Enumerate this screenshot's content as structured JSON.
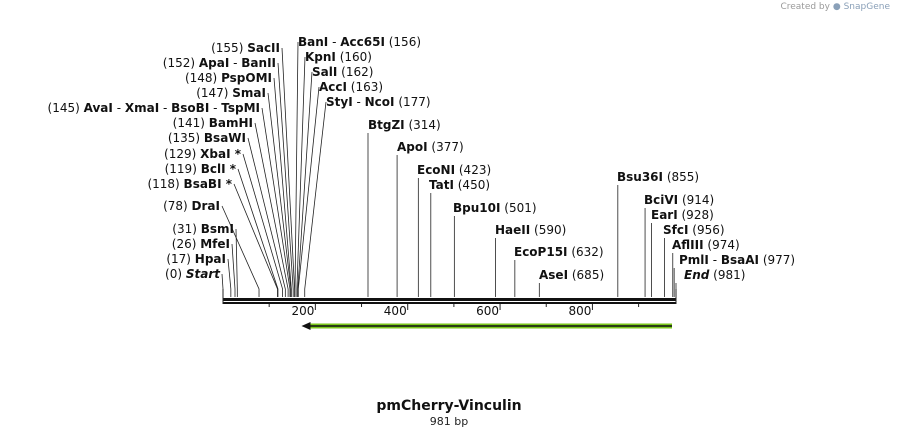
{
  "credit": {
    "prefix": "Created by",
    "brand": "SnapGene"
  },
  "plasmid": {
    "name": "pmCherry-Vinculin",
    "length_label": "981 bp",
    "length": 981
  },
  "axis": {
    "ticks": [
      {
        "value": 200,
        "label": "200"
      },
      {
        "value": 400,
        "label": "400"
      },
      {
        "value": 600,
        "label": "600"
      },
      {
        "value": 800,
        "label": "800"
      }
    ]
  },
  "feature": {
    "name": "orf-arrow",
    "start": 170,
    "end": 981,
    "direction": "reverse",
    "color": "#79c61a"
  },
  "labels_left": [
    {
      "pos": 155,
      "text": "(155)",
      "names": [
        "SacII"
      ]
    },
    {
      "pos": 152,
      "text": "(152)",
      "names": [
        "ApaI",
        "BanII"
      ]
    },
    {
      "pos": 148,
      "text": "(148)",
      "names": [
        "PspOMI"
      ]
    },
    {
      "pos": 147,
      "text": "(147)",
      "names": [
        "SmaI"
      ]
    },
    {
      "pos": 145,
      "text": "(145)",
      "names": [
        "AvaI",
        "XmaI",
        "BsoBI",
        "TspMI"
      ]
    },
    {
      "pos": 141,
      "text": "(141)",
      "names": [
        "BamHI"
      ]
    },
    {
      "pos": 135,
      "text": "(135)",
      "names": [
        "BsaWI"
      ]
    },
    {
      "pos": 129,
      "text": "(129)",
      "names": [
        "XbaI *"
      ]
    },
    {
      "pos": 119,
      "text": "(119)",
      "names": [
        "BclI *"
      ]
    },
    {
      "pos": 118,
      "text": "(118)",
      "names": [
        "BsaBI *"
      ]
    },
    {
      "pos": 78,
      "text": "(78)",
      "names": [
        "DraI"
      ]
    },
    {
      "pos": 31,
      "text": "(31)",
      "names": [
        "BsmI"
      ]
    },
    {
      "pos": 26,
      "text": "(26)",
      "names": [
        "MfeI"
      ]
    },
    {
      "pos": 17,
      "text": "(17)",
      "names": [
        "HpaI"
      ]
    },
    {
      "pos": 0,
      "text": "(0)",
      "names": [
        "Start"
      ],
      "italic": true
    }
  ],
  "labels_right": [
    {
      "pos": 156,
      "text": "(156)",
      "names": [
        "BanI",
        "Acc65I"
      ]
    },
    {
      "pos": 160,
      "text": "(160)",
      "names": [
        "KpnI"
      ]
    },
    {
      "pos": 162,
      "text": "(162)",
      "names": [
        "SalI"
      ]
    },
    {
      "pos": 163,
      "text": "(163)",
      "names": [
        "AccI"
      ]
    },
    {
      "pos": 177,
      "text": "(177)",
      "names": [
        "StyI",
        "NcoI"
      ]
    },
    {
      "pos": 314,
      "text": "(314)",
      "names": [
        "BtgZI"
      ]
    },
    {
      "pos": 377,
      "text": "(377)",
      "names": [
        "ApoI"
      ]
    },
    {
      "pos": 423,
      "text": "(423)",
      "names": [
        "EcoNI"
      ]
    },
    {
      "pos": 450,
      "text": "(450)",
      "names": [
        "TatI"
      ]
    },
    {
      "pos": 501,
      "text": "(501)",
      "names": [
        "Bpu10I"
      ]
    },
    {
      "pos": 590,
      "text": "(590)",
      "names": [
        "HaeII"
      ]
    },
    {
      "pos": 632,
      "text": "(632)",
      "names": [
        "EcoP15I"
      ]
    },
    {
      "pos": 685,
      "text": "(685)",
      "names": [
        "AseI"
      ]
    },
    {
      "pos": 855,
      "text": "(855)",
      "names": [
        "Bsu36I"
      ]
    },
    {
      "pos": 914,
      "text": "(914)",
      "names": [
        "BciVI"
      ]
    },
    {
      "pos": 928,
      "text": "(928)",
      "names": [
        "EarI"
      ]
    },
    {
      "pos": 956,
      "text": "(956)",
      "names": [
        "SfcI"
      ]
    },
    {
      "pos": 974,
      "text": "(974)",
      "names": [
        "AflIII"
      ]
    },
    {
      "pos": 977,
      "text": "(977)",
      "names": [
        "PmlI",
        "BsaAI"
      ]
    },
    {
      "pos": 981,
      "text": "(981)",
      "names": [
        "End"
      ],
      "italic": true
    }
  ]
}
